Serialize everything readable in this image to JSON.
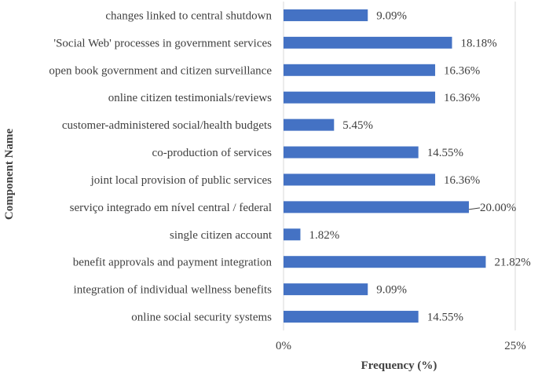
{
  "chart_data": {
    "type": "bar",
    "orientation": "horizontal",
    "categories": [
      "changes linked to central shutdown",
      "'Social Web' processes in government services",
      "open book government and citizen surveillance",
      "online citizen testimonials/reviews",
      "customer-administered social/health budgets",
      "co-production of services",
      "joint local provision of public services",
      "serviço integrado em nível central / federal",
      "single citizen account",
      "benefit approvals and payment integration",
      "integration of individual wellness benefits",
      "online social security systems"
    ],
    "values": [
      9.09,
      18.18,
      16.36,
      16.36,
      5.45,
      14.55,
      16.36,
      20.0,
      1.82,
      21.82,
      9.09,
      14.55
    ],
    "value_labels": [
      "9.09%",
      "18.18%",
      "16.36%",
      "16.36%",
      "5.45%",
      "14.55%",
      "16.36%",
      "20.00%",
      "1.82%",
      "21.82%",
      "9.09%",
      "14.55%"
    ],
    "xlim": [
      0,
      25
    ],
    "x_ticks": [
      0,
      25
    ],
    "x_tick_labels": [
      "0%",
      "25%"
    ],
    "xlabel": "Frequency (%)",
    "ylabel": "Component Name",
    "title": "",
    "bar_color": "#4472C4",
    "grid": true
  }
}
